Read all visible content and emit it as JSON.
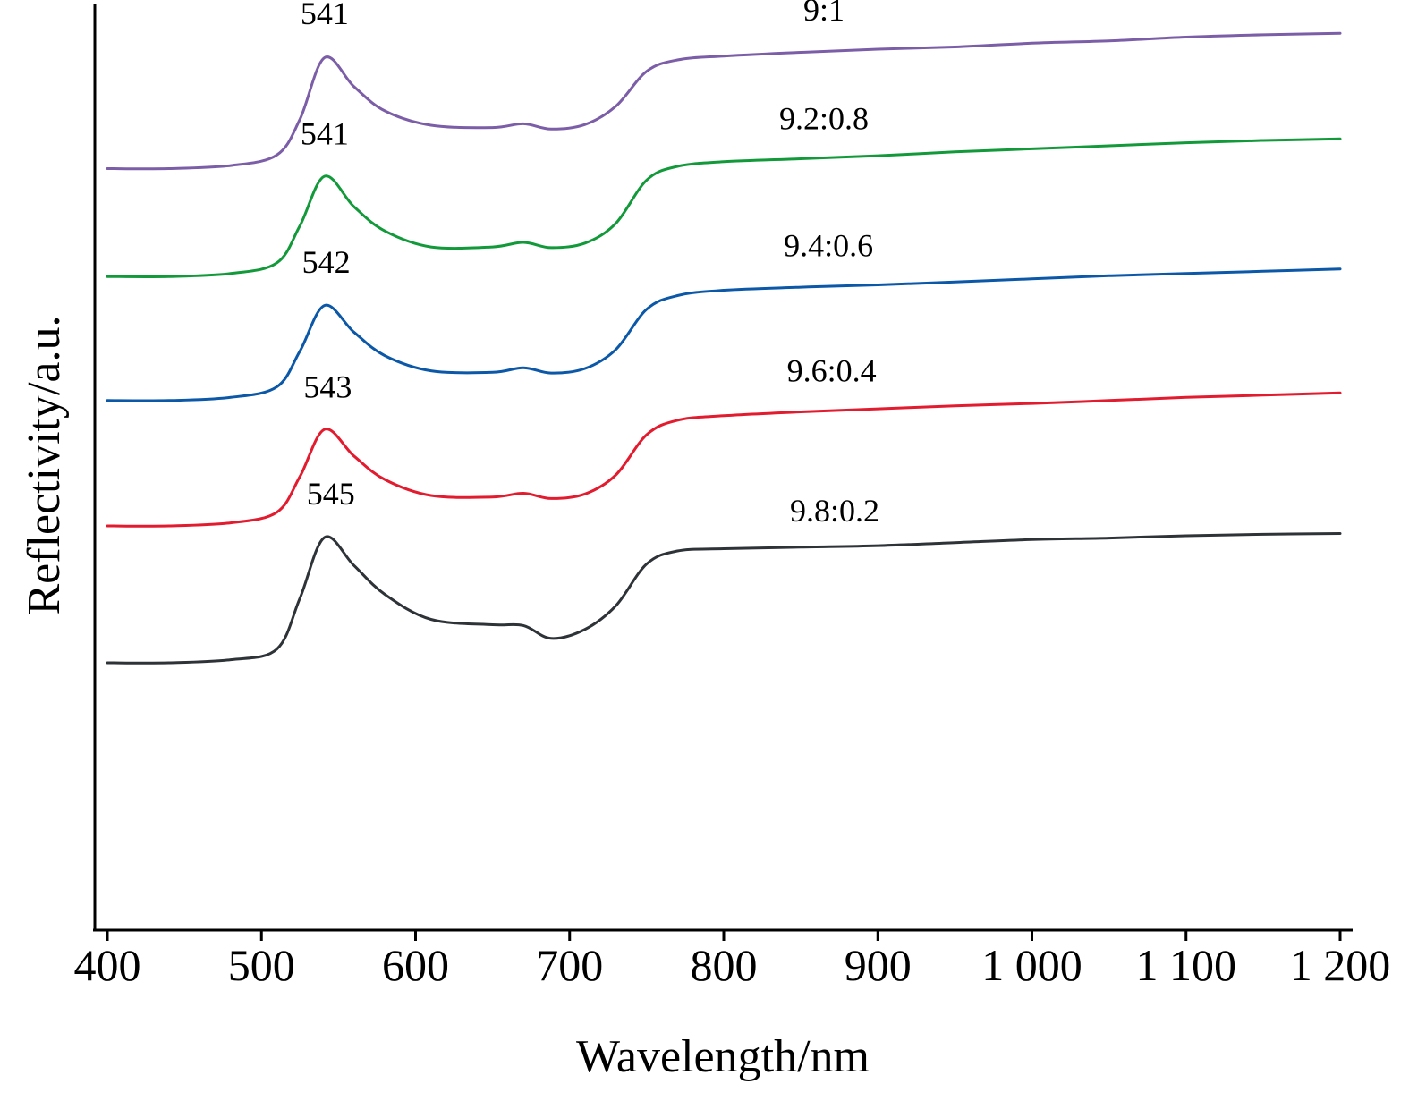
{
  "chart_data": {
    "type": "line",
    "title": "",
    "xlabel": "Wavelength/nm",
    "ylabel": "Reflectivity/a.u.",
    "xlim": [
      400,
      1200
    ],
    "ylim": [
      0,
      100
    ],
    "x_ticks": [
      400,
      500,
      600,
      700,
      800,
      900,
      1000,
      1100,
      1200
    ],
    "x_tick_labels": [
      "400",
      "500",
      "600",
      "700",
      "800",
      "900",
      "1 000",
      "1 100",
      "1 200"
    ],
    "y_ticks_shown": false,
    "grid": false,
    "legend": "none",
    "x": [
      400,
      440,
      480,
      510,
      525,
      541,
      560,
      580,
      610,
      650,
      670,
      688,
      710,
      730,
      750,
      770,
      800,
      850,
      900,
      950,
      1000,
      1050,
      1100,
      1150,
      1200
    ],
    "series": [
      {
        "name": "9:1",
        "color": "#7b5ea7",
        "peak_label": "541",
        "values": [
          83.0,
          83.0,
          83.4,
          84.8,
          89.5,
          97.6,
          93.8,
          90.6,
          88.7,
          88.4,
          88.9,
          88.2,
          88.8,
          91.2,
          95.8,
          97.3,
          97.8,
          98.3,
          98.7,
          99.0,
          99.5,
          99.8,
          100.3,
          100.6,
          100.8
        ]
      },
      {
        "name": "9.2:0.8",
        "color": "#129a3a",
        "peak_label": "541",
        "values": [
          68.8,
          68.8,
          69.2,
          70.6,
          75.5,
          82.0,
          78.0,
          74.8,
          72.7,
          72.7,
          73.3,
          72.6,
          73.2,
          75.8,
          81.5,
          83.3,
          83.9,
          84.3,
          84.7,
          85.2,
          85.6,
          86.0,
          86.4,
          86.7,
          86.9
        ]
      },
      {
        "name": "9.4:0.6",
        "color": "#0b57a8",
        "peak_label": "542",
        "values": [
          52.5,
          52.5,
          52.9,
          54.3,
          59.0,
          65.0,
          61.5,
          58.4,
          56.4,
          56.2,
          56.8,
          56.1,
          56.7,
          59.2,
          64.5,
          66.3,
          67.0,
          67.4,
          67.7,
          68.1,
          68.5,
          68.9,
          69.2,
          69.5,
          69.8
        ]
      },
      {
        "name": "9.6:0.4",
        "color": "#e31b2e",
        "peak_label": "543",
        "values": [
          36.0,
          36.0,
          36.4,
          37.8,
          42.5,
          48.7,
          45.2,
          42.1,
          40.0,
          39.8,
          40.3,
          39.6,
          40.2,
          42.7,
          48.0,
          49.9,
          50.5,
          51.0,
          51.4,
          51.8,
          52.1,
          52.5,
          52.9,
          53.2,
          53.5
        ]
      },
      {
        "name": "9.8:0.2",
        "color": "#2e3338",
        "peak_label": "545",
        "values": [
          18.0,
          18.0,
          18.4,
          19.8,
          26.5,
          34.5,
          30.8,
          27.0,
          23.7,
          23.0,
          22.9,
          21.2,
          22.4,
          25.5,
          31.0,
          32.7,
          33.0,
          33.2,
          33.4,
          33.8,
          34.2,
          34.4,
          34.7,
          34.9,
          35.0
        ]
      }
    ],
    "annotations": [
      {
        "text": "541",
        "x": 541,
        "y": 102.0
      },
      {
        "text": "9:1",
        "x": 865,
        "y": 102.5
      },
      {
        "text": "541",
        "x": 541,
        "y": 86.2
      },
      {
        "text": "9.2:0.8",
        "x": 865,
        "y": 88.2
      },
      {
        "text": "542",
        "x": 542,
        "y": 69.3
      },
      {
        "text": "9.4:0.6",
        "x": 868,
        "y": 71.5
      },
      {
        "text": "543",
        "x": 543,
        "y": 52.9
      },
      {
        "text": "9.6:0.4",
        "x": 870,
        "y": 55.0
      },
      {
        "text": "545",
        "x": 545,
        "y": 38.8
      },
      {
        "text": "9.8:0.2",
        "x": 872,
        "y": 36.6
      }
    ]
  }
}
